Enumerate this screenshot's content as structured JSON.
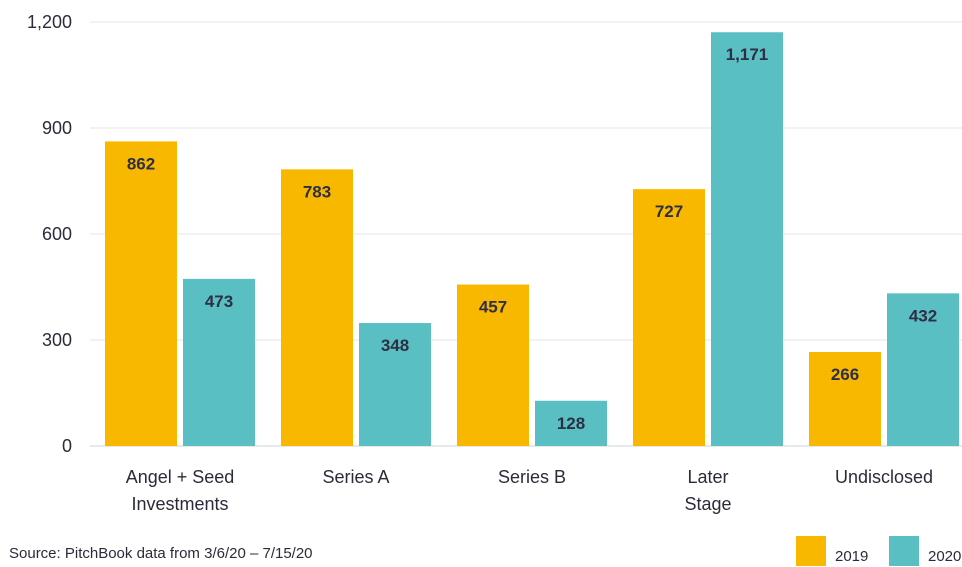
{
  "chart_data": {
    "type": "bar",
    "categories": [
      "Angel + Seed Investments",
      "Series A",
      "Series B",
      "Later Stage",
      "Undisclosed"
    ],
    "category_lines": [
      [
        "Angel + Seed",
        "Investments"
      ],
      [
        "Series A"
      ],
      [
        "Series B"
      ],
      [
        "Later",
        "Stage"
      ],
      [
        "Undisclosed"
      ]
    ],
    "series": [
      {
        "name": "2019",
        "color": "#f9b800",
        "values": [
          862,
          783,
          457,
          727,
          266
        ],
        "labels": [
          "862",
          "783",
          "457",
          "727",
          "266"
        ]
      },
      {
        "name": "2020",
        "color": "#59bfc3",
        "values": [
          473,
          348,
          128,
          1171,
          432
        ],
        "labels": [
          "473",
          "348",
          "128",
          "1,171",
          "432"
        ]
      }
    ],
    "ylim": [
      0,
      1200
    ],
    "yticks": [
      0,
      300,
      600,
      900,
      1200
    ],
    "ytick_labels": [
      "0",
      "300",
      "600",
      "900",
      "1,200"
    ],
    "grid": true,
    "legend_position": "bottom-right",
    "title": "",
    "xlabel": "",
    "ylabel": ""
  },
  "source_note": "Source: PitchBook data from 3/6/20 – 7/15/20"
}
